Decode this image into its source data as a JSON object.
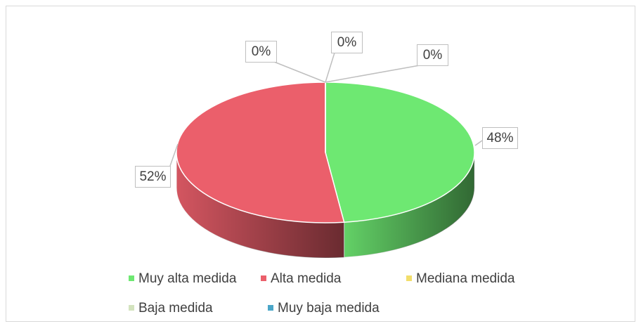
{
  "chart_data": {
    "type": "pie3d",
    "categories": [
      "Muy alta medida",
      "Alta medida",
      "Mediana medida",
      "Baja medida",
      "Muy baja medida"
    ],
    "values": [
      48,
      52,
      0,
      0,
      0
    ],
    "value_labels": [
      "48%",
      "52%",
      "0%",
      "0%",
      "0%"
    ],
    "colors": [
      "#6ee872",
      "#eb5f6b",
      "#f2de6b",
      "#d3e3be",
      "#4aa6c8"
    ],
    "legend": "bottom"
  }
}
